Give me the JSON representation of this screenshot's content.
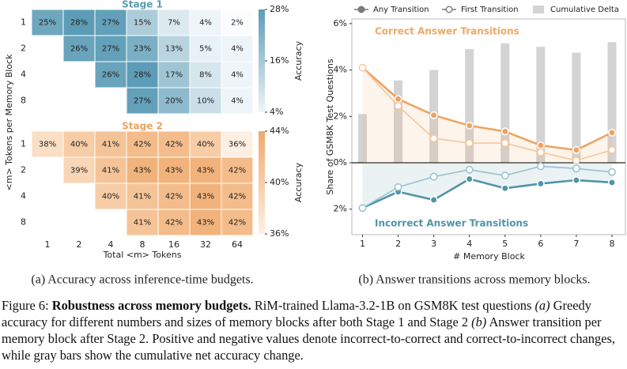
{
  "chart_data": [
    {
      "type": "heatmap",
      "title": "Stage 1",
      "title_color": "#5a9ab3",
      "ylabel": "<m> Tokens per Memory Block",
      "y_categories": [
        "1",
        "2",
        "4",
        "8"
      ],
      "values": [
        [
          25,
          28,
          27,
          15,
          7,
          4,
          2
        ],
        [
          null,
          26,
          27,
          23,
          13,
          5,
          4
        ],
        [
          null,
          null,
          26,
          28,
          17,
          8,
          4
        ],
        [
          null,
          null,
          null,
          27,
          20,
          10,
          4
        ]
      ],
      "value_labels": [
        [
          "25%",
          "28%",
          "27%",
          "15%",
          "7%",
          "4%",
          "2%"
        ],
        [
          null,
          "26%",
          "27%",
          "23%",
          "13%",
          "5%",
          "4%"
        ],
        [
          null,
          null,
          "26%",
          "28%",
          "17%",
          "8%",
          "4%"
        ],
        [
          null,
          null,
          null,
          "27%",
          "20%",
          "10%",
          "4%"
        ]
      ],
      "clim": [
        4,
        28
      ],
      "cticks": [
        {
          "value": 4,
          "label": "4%"
        },
        {
          "value": 16,
          "label": "16%"
        },
        {
          "value": 28,
          "label": "28%"
        }
      ],
      "colorbar_label": "Accuracy",
      "color_low": "#eef5f8",
      "color_high": "#5d9cb6"
    },
    {
      "type": "heatmap",
      "title": "Stage 2",
      "title_color": "#eda25f",
      "xlabel": "Total <m> Tokens",
      "x_categories": [
        "1",
        "2",
        "4",
        "8",
        "16",
        "32",
        "64"
      ],
      "y_categories": [
        "1",
        "2",
        "4",
        "8"
      ],
      "values": [
        [
          38,
          40,
          41,
          42,
          42,
          40,
          36
        ],
        [
          null,
          39,
          41,
          43,
          43,
          43,
          42
        ],
        [
          null,
          null,
          40,
          41,
          42,
          43,
          42
        ],
        [
          null,
          null,
          null,
          41,
          42,
          43,
          42
        ]
      ],
      "value_labels": [
        [
          "38%",
          "40%",
          "41%",
          "42%",
          "42%",
          "40%",
          "36%"
        ],
        [
          null,
          "39%",
          "41%",
          "43%",
          "43%",
          "43%",
          "42%"
        ],
        [
          null,
          null,
          "40%",
          "41%",
          "42%",
          "43%",
          "42%"
        ],
        [
          null,
          null,
          null,
          "41%",
          "42%",
          "43%",
          "42%"
        ]
      ],
      "clim": [
        36,
        44
      ],
      "cticks": [
        {
          "value": 36,
          "label": "36%"
        },
        {
          "value": 40,
          "label": "40%"
        },
        {
          "value": 44,
          "label": "44%"
        }
      ],
      "colorbar_label": "Accuracy",
      "color_low": "#fdf0e2",
      "color_high": "#efaa6c"
    },
    {
      "type": "line",
      "ylabel": "Share of GSM8K Test Questions",
      "xlabel": "# Memory Block",
      "x": [
        1,
        2,
        3,
        4,
        5,
        6,
        7,
        8
      ],
      "xlim": [
        0.7,
        8.4
      ],
      "xticks": [
        1,
        2,
        3,
        4,
        5,
        6,
        7,
        8
      ],
      "ylim": [
        -3.1,
        6.2
      ],
      "yticks": [
        {
          "value": -2,
          "label": "2%"
        },
        {
          "value": 0,
          "label": "0%"
        },
        {
          "value": 2,
          "label": "2%"
        },
        {
          "value": 4,
          "label": "4%"
        },
        {
          "value": 6,
          "label": "6%"
        }
      ],
      "legend_color": "#7a7a7a",
      "annotations": [
        {
          "text": "Correct Answer Transitions",
          "color": "#f0a764"
        },
        {
          "text": "Incorrect Answer Transitions",
          "color": "#4f94a8"
        }
      ],
      "series": [
        {
          "name": "Any Transition",
          "marker": "filled",
          "correct": {
            "color": "#eea462",
            "values": [
              4.1,
              2.75,
              2.05,
              1.6,
              1.35,
              0.75,
              0.55,
              1.3
            ]
          },
          "incorrect": {
            "color": "#4f94a8",
            "values": [
              -1.95,
              -1.25,
              -1.6,
              -0.7,
              -1.1,
              -0.9,
              -0.75,
              -0.85
            ]
          }
        },
        {
          "name": "First Transition",
          "marker": "hollow",
          "correct": {
            "color": "#f6c79b",
            "values": [
              4.1,
              2.45,
              1.05,
              0.85,
              0.85,
              0.45,
              0.1,
              0.55
            ]
          },
          "incorrect": {
            "color": "#98c2cf",
            "values": [
              -1.95,
              -1.05,
              -0.6,
              -0.3,
              -0.55,
              -0.15,
              -0.25,
              -0.4
            ]
          }
        },
        {
          "name": "Cumulative Delta",
          "marker": "bar",
          "color": "#d3d3d3",
          "values": [
            2.1,
            3.55,
            4.0,
            4.9,
            5.15,
            5.0,
            4.75,
            5.2
          ]
        }
      ]
    }
  ],
  "subcaptions": [
    "(a) Accuracy across inference-time budgets.",
    "(b) Answer transitions across memory blocks."
  ],
  "caption": {
    "label": "Figure 6:",
    "title": "Robustness across memory budgets.",
    "text": "RiM-trained Llama-3.2-1B on GSM8K test questions",
    "part_a_label": "(a)",
    "part_a": "Greedy accuracy for different numbers and sizes of memory blocks after both Stage 1 and Stage 2",
    "part_b_label": "(b)",
    "part_b": "Answer transition per memory block after Stage 2. Positive and negative values denote incorrect-to-correct and correct-to-incorrect changes, while gray bars show the cumulative net accuracy change."
  }
}
